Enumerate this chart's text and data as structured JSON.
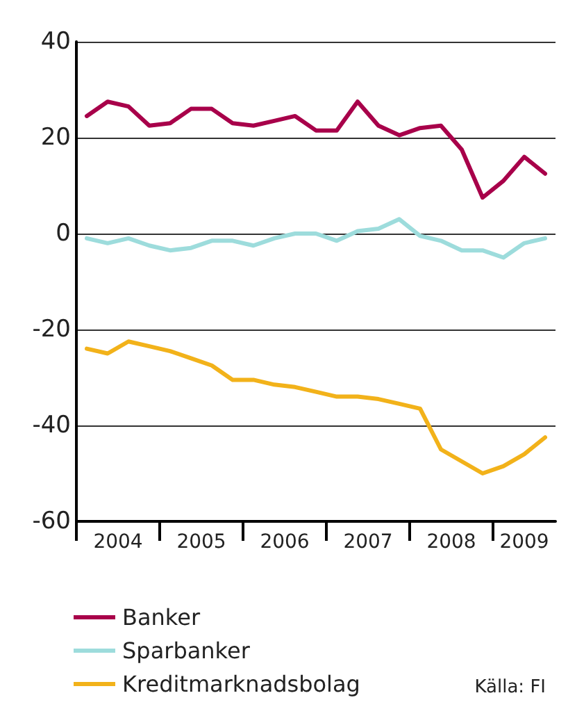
{
  "chart_data": {
    "type": "line",
    "x": [
      2004.125,
      2004.375,
      2004.625,
      2004.875,
      2005.125,
      2005.375,
      2005.625,
      2005.875,
      2006.125,
      2006.375,
      2006.625,
      2006.875,
      2007.125,
      2007.375,
      2007.625,
      2007.875,
      2008.125,
      2008.375,
      2008.625,
      2008.875,
      2009.125,
      2009.375,
      2009.625
    ],
    "series": [
      {
        "name": "Banker",
        "color": "#a8004a",
        "values": [
          24.5,
          27.5,
          26.5,
          22.5,
          23,
          26,
          26,
          23,
          22.5,
          23.5,
          24.5,
          21.5,
          21.5,
          27.5,
          22.5,
          20.5,
          22,
          22.5,
          17.5,
          7.5,
          11,
          16,
          12.5
        ]
      },
      {
        "name": "Sparbanker",
        "color": "#9ddcdc",
        "values": [
          -1,
          -2,
          -1,
          -2.5,
          -3.5,
          -3,
          -1.5,
          -1.5,
          -2.5,
          -1,
          0,
          0,
          -1.5,
          0.5,
          1,
          3,
          -0.5,
          -1.5,
          -3.5,
          -3.5,
          -5,
          -2,
          -1
        ]
      },
      {
        "name": "Kreditmarknadsbolag",
        "color": "#f2b21a",
        "values": [
          -24,
          -25,
          -22.5,
          -23.5,
          -24.5,
          -26,
          -27.5,
          -30.5,
          -30.5,
          -31.5,
          -32,
          -33,
          -34,
          -34,
          -34.5,
          -35.5,
          -36.5,
          -45,
          -47.5,
          -50,
          -48.5,
          -46,
          -42.5
        ]
      }
    ],
    "xlim": [
      2004,
      2009.75
    ],
    "xticks": [
      {
        "value": 2004,
        "label": null
      },
      {
        "value": 2004.5,
        "label": "2004"
      },
      {
        "value": 2005,
        "label": null
      },
      {
        "value": 2005.5,
        "label": "2005"
      },
      {
        "value": 2006,
        "label": null
      },
      {
        "value": 2006.5,
        "label": "2006"
      },
      {
        "value": 2007,
        "label": null
      },
      {
        "value": 2007.5,
        "label": "2007"
      },
      {
        "value": 2008,
        "label": null
      },
      {
        "value": 2008.5,
        "label": "2008"
      },
      {
        "value": 2009,
        "label": null
      },
      {
        "value": 2009.375,
        "label": "2009"
      }
    ],
    "ylim": [
      -60,
      40
    ],
    "yticks": [
      -60,
      -40,
      -20,
      0,
      20,
      40
    ],
    "grid": "y",
    "legend": "bottom",
    "marker": "none",
    "line_style": "solid",
    "annotations": [
      "Källa: FI"
    ]
  }
}
